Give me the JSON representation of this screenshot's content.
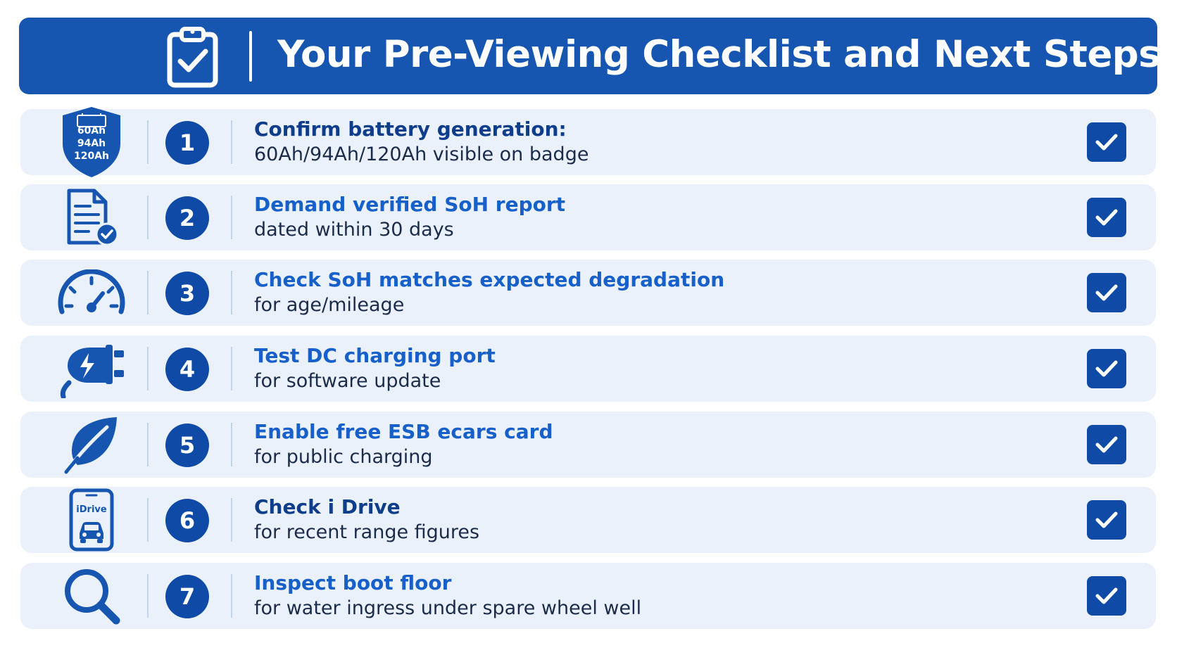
{
  "header": {
    "title": "Your Pre-Viewing Checklist and Next Steps",
    "icon": "clipboard-check-icon",
    "background": "#1656b1"
  },
  "colors": {
    "accent": "#0f4aa6",
    "title_dark": "#0e3d8c",
    "title_bright": "#1760c9",
    "row_background": "#eaf1fb"
  },
  "items": [
    {
      "number": "1",
      "icon": "battery-badge-icon",
      "icon_labels": [
        "60Ah",
        "94Ah",
        "120Ah"
      ],
      "title": "Confirm battery generation:",
      "description": "60Ah/94Ah/120Ah visible on badge",
      "title_color": "#0e3d8c",
      "checked": true
    },
    {
      "number": "2",
      "icon": "document-check-icon",
      "title": "Demand verified SoH report",
      "description": "dated within 30 days",
      "title_color": "#1760c9",
      "checked": true
    },
    {
      "number": "3",
      "icon": "speedometer-icon",
      "title": "Check SoH matches expected degradation",
      "description": "for age/mileage",
      "title_color": "#1760c9",
      "checked": true
    },
    {
      "number": "4",
      "icon": "charging-plug-icon",
      "title": "Test DC charging port",
      "description": "for software update",
      "title_color": "#1760c9",
      "checked": true
    },
    {
      "number": "5",
      "icon": "leaf-icon",
      "title": "Enable free ESB ecars card",
      "description": "for public charging",
      "title_color": "#1760c9",
      "checked": true
    },
    {
      "number": "6",
      "icon": "phone-app-icon",
      "icon_labels": [
        "iDrive"
      ],
      "title": "Check i Drive",
      "description": "for recent range figures",
      "title_color": "#0e3d8c",
      "checked": true
    },
    {
      "number": "7",
      "icon": "magnifier-icon",
      "title": "Inspect boot floor",
      "description": "for water ingress under spare wheel well",
      "title_color": "#1760c9",
      "checked": true
    }
  ]
}
